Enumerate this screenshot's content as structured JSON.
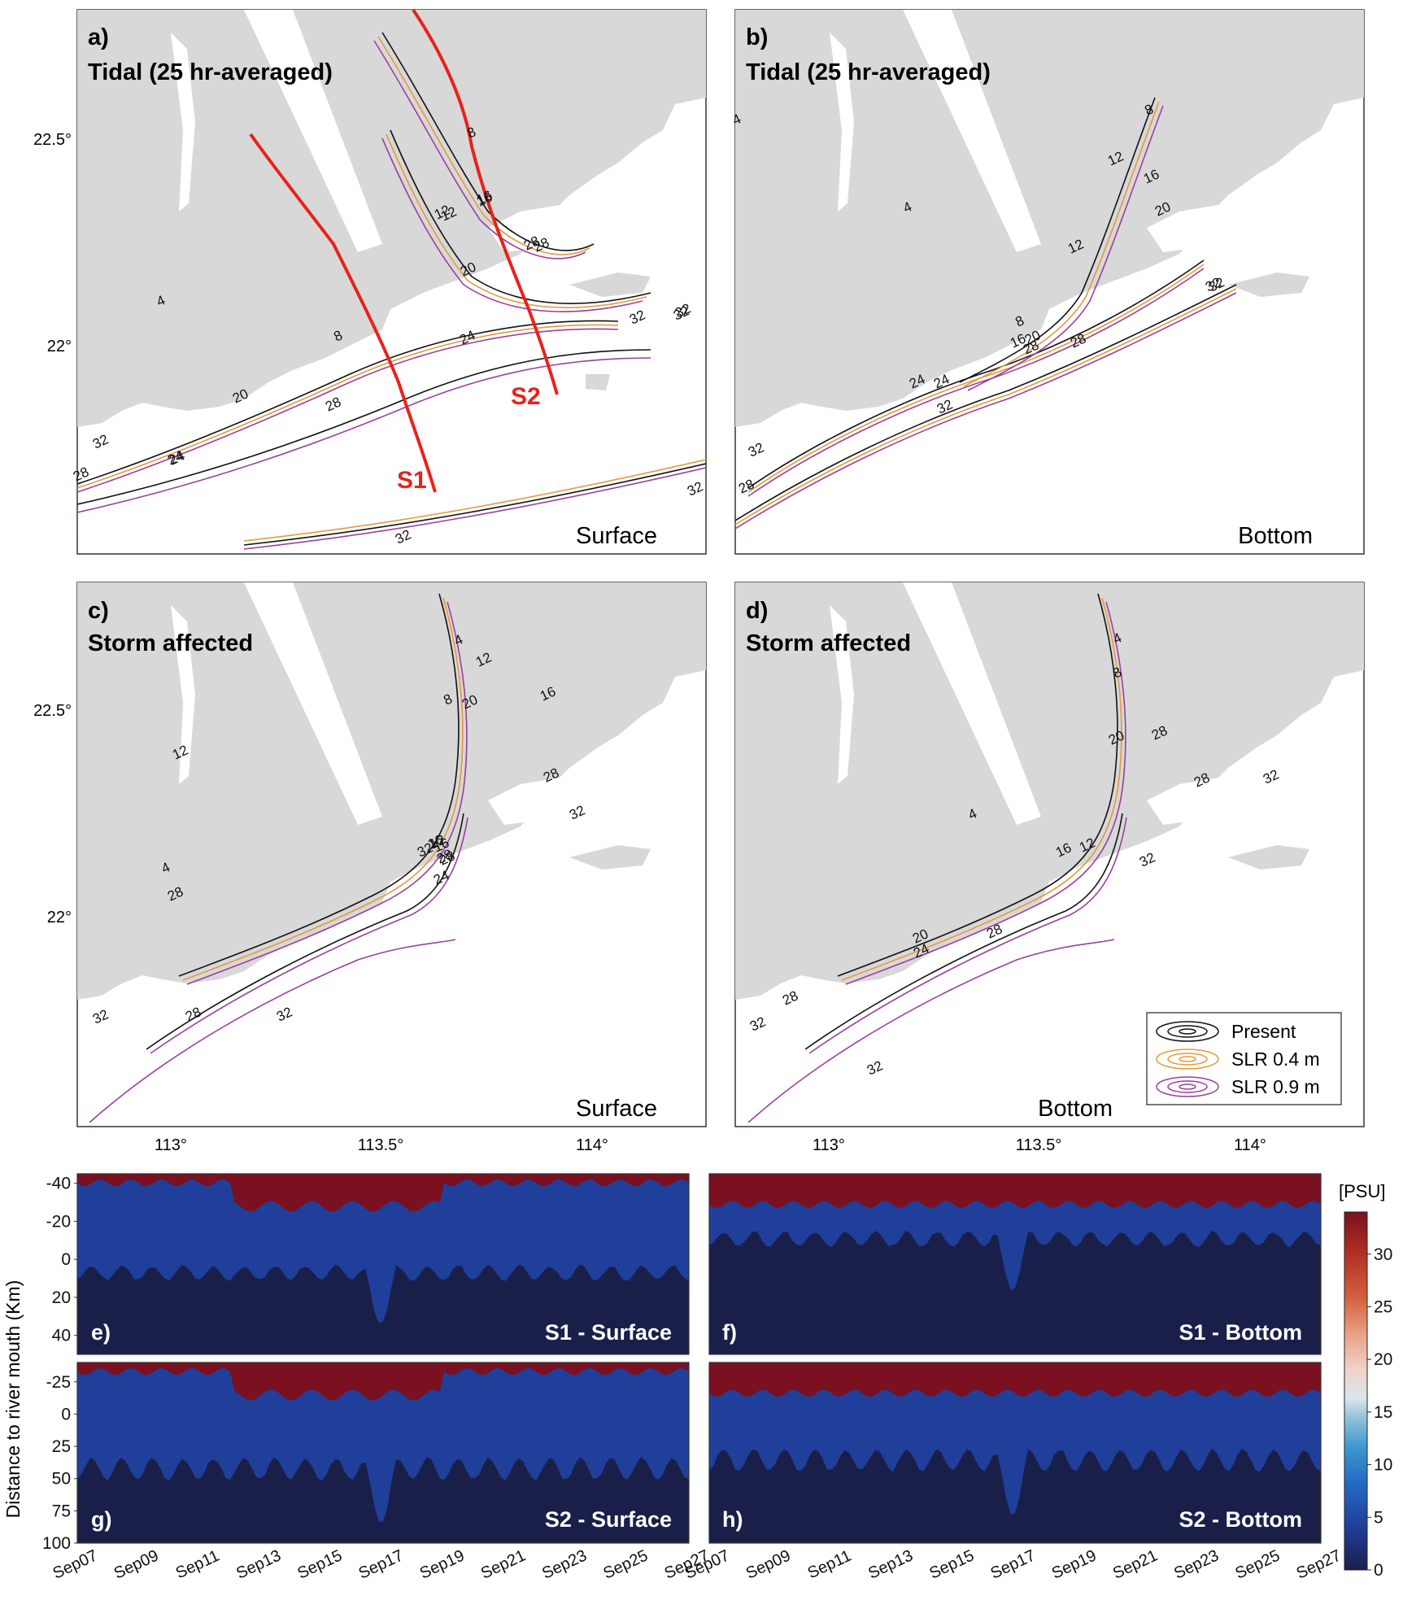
{
  "figure": {
    "colors": {
      "land": "#d8d8d8",
      "present": "#111111",
      "slr_04": "#e39a3a",
      "slr_09": "#9b3fa0",
      "section_line": "#e8221c"
    },
    "map_panels": [
      {
        "id": "a",
        "letter": "a)",
        "title": "Tidal (25 hr-averaged)",
        "layer": "Surface",
        "show_sections": true
      },
      {
        "id": "b",
        "letter": "b)",
        "title": "Tidal (25 hr-averaged)",
        "layer": "Bottom",
        "show_sections": false
      },
      {
        "id": "c",
        "letter": "c)",
        "title": "Storm affected",
        "layer": "Surface",
        "show_sections": false
      },
      {
        "id": "d",
        "letter": "d)",
        "title": "Storm affected",
        "layer": "Bottom",
        "show_sections": false
      }
    ],
    "map_axes": {
      "lat_ticks": [
        "22.5°",
        "22°"
      ],
      "lon_ticks": [
        "113°",
        "113.5°",
        "114°"
      ]
    },
    "section_labels": [
      "S1",
      "S2"
    ],
    "contour_labels": {
      "a": [
        "4",
        "8",
        "12",
        "16",
        "20",
        "24",
        "28",
        "32",
        "8",
        "12",
        "16",
        "20",
        "24",
        "28",
        "32",
        "32",
        "24",
        "28",
        "32",
        "32",
        "28",
        "32"
      ],
      "b": [
        "4",
        "8",
        "12",
        "16",
        "20",
        "24",
        "28",
        "32",
        "4",
        "12",
        "16",
        "20",
        "8",
        "24",
        "28",
        "32",
        "32",
        "28",
        "32"
      ],
      "c": [
        "4",
        "12",
        "16",
        "20",
        "28",
        "32",
        "4",
        "8",
        "12",
        "16",
        "28",
        "32",
        "28",
        "24",
        "12",
        "16",
        "28",
        "32",
        "28",
        "32"
      ],
      "d": [
        "4",
        "8",
        "20",
        "28",
        "28",
        "32",
        "4",
        "12",
        "16",
        "32",
        "28",
        "24",
        "20",
        "28",
        "32",
        "32"
      ]
    },
    "legend": {
      "items": [
        {
          "label": "Present",
          "color_key": "present"
        },
        {
          "label": "SLR 0.4 m",
          "color_key": "slr_04"
        },
        {
          "label": "SLR 0.9 m",
          "color_key": "slr_09"
        }
      ]
    },
    "section_panels": [
      {
        "id": "e",
        "letter": "e)",
        "title": "S1 - Surface",
        "row": 0,
        "col": 0
      },
      {
        "id": "f",
        "letter": "f)",
        "title": "S1 - Bottom",
        "row": 0,
        "col": 1
      },
      {
        "id": "g",
        "letter": "g)",
        "title": "S2 - Surface",
        "row": 1,
        "col": 0
      },
      {
        "id": "h",
        "letter": "h)",
        "title": "S2 - Bottom",
        "row": 1,
        "col": 1
      }
    ],
    "section_axes": {
      "ylabel": "Distance to river mouth (Km)",
      "s1_yticks": [
        "-40",
        "-20",
        "0",
        "20",
        "40"
      ],
      "s2_yticks": [
        "-25",
        "0",
        "25",
        "50",
        "75",
        "100"
      ],
      "s1_range": [
        -45,
        50
      ],
      "s2_range": [
        -40,
        100
      ],
      "xticks": [
        "Sep07",
        "Sep09",
        "Sep11",
        "Sep13",
        "Sep15",
        "Sep17",
        "Sep19",
        "Sep21",
        "Sep23",
        "Sep25",
        "Sep27"
      ]
    },
    "colorbar": {
      "unit": "[PSU]",
      "ticks": [
        "0",
        "5",
        "10",
        "15",
        "20",
        "25",
        "30"
      ],
      "range": [
        0,
        34
      ],
      "stops": [
        "#1a1f4a",
        "#1f3f9a",
        "#2469c4",
        "#3c96cf",
        "#8cc0d8",
        "#d9e6ec",
        "#f0d2c8",
        "#e8a184",
        "#d4603e",
        "#b33122",
        "#7a1020"
      ]
    }
  }
}
